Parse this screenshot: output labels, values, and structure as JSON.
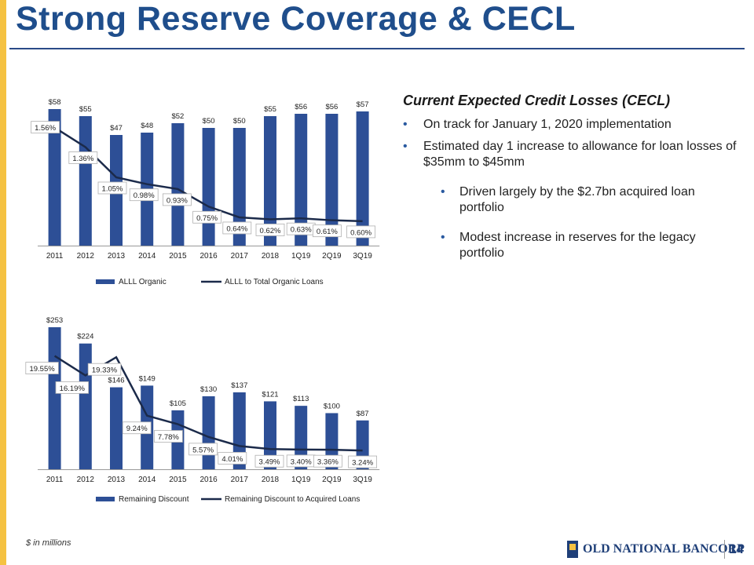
{
  "title": "Strong Reserve Coverage & CECL",
  "chart_data": [
    {
      "type": "bar",
      "categories": [
        "2011",
        "2012",
        "2013",
        "2014",
        "2015",
        "2016",
        "2017",
        "2018",
        "1Q19",
        "2Q19",
        "3Q19"
      ],
      "series": [
        {
          "name": "ALLL Organic",
          "kind": "bar",
          "values": [
            58,
            55,
            47,
            48,
            52,
            50,
            50,
            55,
            56,
            56,
            57
          ],
          "labels": [
            "$58",
            "$55",
            "$47",
            "$48",
            "$52",
            "$50",
            "$50",
            "$55",
            "$56",
            "$56",
            "$57"
          ]
        },
        {
          "name": "ALLL to Total Organic Loans",
          "kind": "line",
          "values": [
            1.56,
            1.36,
            1.05,
            0.98,
            0.93,
            0.75,
            0.64,
            0.62,
            0.63,
            0.61,
            0.6
          ],
          "labels": [
            "1.56%",
            "1.36%",
            "1.05%",
            "0.98%",
            "0.93%",
            "0.75%",
            "0.64%",
            "0.62%",
            "0.63%",
            "0.61%",
            "0.60%"
          ]
        }
      ],
      "ylim_bar": [
        0,
        58
      ],
      "ylim_line": [
        0.35,
        1.75
      ],
      "legend_position": "bottom"
    },
    {
      "type": "bar",
      "categories": [
        "2011",
        "2012",
        "2013",
        "2014",
        "2015",
        "2016",
        "2017",
        "2018",
        "1Q19",
        "2Q19",
        "3Q19"
      ],
      "series": [
        {
          "name": "Remaining Discount",
          "kind": "bar",
          "values": [
            253,
            224,
            146,
            149,
            105,
            130,
            137,
            121,
            113,
            100,
            87
          ],
          "labels": [
            "$253",
            "$224",
            "$146",
            "$149",
            "$105",
            "$130",
            "$137",
            "$121",
            "$113",
            "$100",
            "$87"
          ]
        },
        {
          "name": "Remaining Discount to Acquired Loans",
          "kind": "line",
          "values": [
            19.55,
            16.19,
            19.33,
            9.24,
            7.78,
            5.57,
            4.01,
            3.49,
            3.4,
            3.36,
            3.24
          ],
          "labels": [
            "19.55%",
            "16.19%",
            "19.33%",
            "9.24%",
            "7.78%",
            "5.57%",
            "4.01%",
            "3.49%",
            "3.40%",
            "3.36%",
            "3.24%"
          ]
        }
      ],
      "ylim_bar": [
        0,
        253
      ],
      "ylim_line": [
        0,
        24.5
      ],
      "legend_position": "bottom"
    }
  ],
  "cecl": {
    "heading": "Current Expected Credit Losses (CECL)",
    "bullets": [
      "On track for January 1, 2020 implementation",
      "Estimated day 1 increase to allowance for loan losses of $35mm to $45mm"
    ],
    "sub_bullets": [
      "Driven largely by the $2.7bn acquired loan portfolio",
      "Modest increase in reserves for the legacy portfolio"
    ]
  },
  "footnote": "$ in millions",
  "logo_text": "OLD NATIONAL BANCORP",
  "page_number": "14",
  "colors": {
    "bar": "#2d4f96",
    "line": "#1b2a4a",
    "accent": "#f5c242",
    "title": "#1f4e8c"
  }
}
